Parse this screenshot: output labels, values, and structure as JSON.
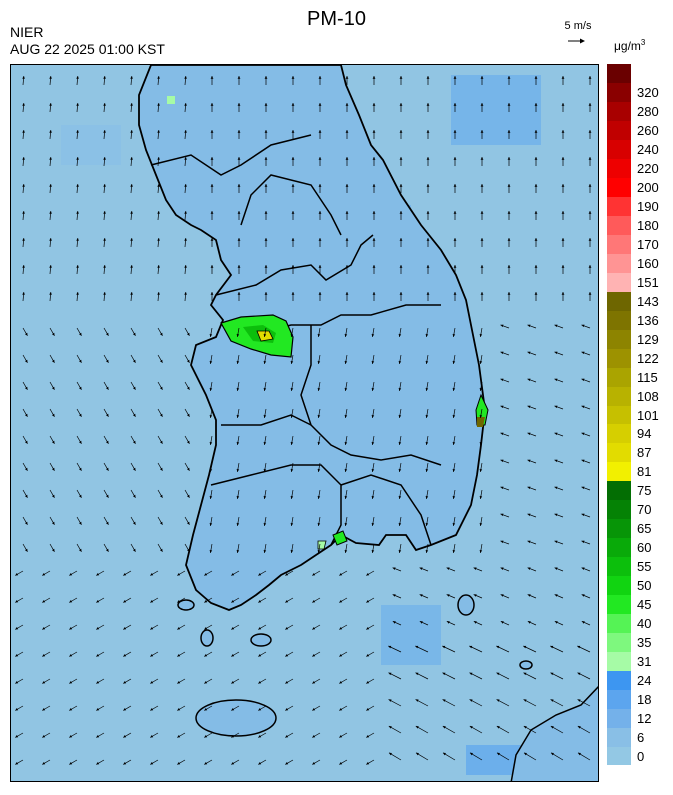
{
  "header": {
    "title": "PM-10",
    "agency": "NIER",
    "timestamp": "AUG 22 2025 01:00 KST",
    "wind_scale_label": "5 m/s",
    "unit_label": "μg/m",
    "unit_superscript": "3"
  },
  "legend": {
    "bins": [
      {
        "label": "0",
        "color": "#93c8e4"
      },
      {
        "label": "6",
        "color": "#89bfe6"
      },
      {
        "label": "12",
        "color": "#74b1ea"
      },
      {
        "label": "18",
        "color": "#5ca5ee"
      },
      {
        "label": "24",
        "color": "#3d96f1"
      },
      {
        "label": "31",
        "color": "#a6fba6"
      },
      {
        "label": "35",
        "color": "#7ef87e"
      },
      {
        "label": "40",
        "color": "#55f355"
      },
      {
        "label": "45",
        "color": "#22e822"
      },
      {
        "label": "50",
        "color": "#11d411"
      },
      {
        "label": "55",
        "color": "#0cbf0c"
      },
      {
        "label": "60",
        "color": "#09aa09"
      },
      {
        "label": "65",
        "color": "#079507"
      },
      {
        "label": "70",
        "color": "#058205"
      },
      {
        "label": "75",
        "color": "#036e03"
      },
      {
        "label": "81",
        "color": "#f2f000"
      },
      {
        "label": "87",
        "color": "#e2dc00"
      },
      {
        "label": "94",
        "color": "#d6cf00"
      },
      {
        "label": "101",
        "color": "#c6c000"
      },
      {
        "label": "108",
        "color": "#b8b200"
      },
      {
        "label": "115",
        "color": "#aaa400"
      },
      {
        "label": "122",
        "color": "#9d9200"
      },
      {
        "label": "129",
        "color": "#8d8400"
      },
      {
        "label": "136",
        "color": "#7e7400"
      },
      {
        "label": "143",
        "color": "#6e6600"
      },
      {
        "label": "151",
        "color": "#ffb3b3"
      },
      {
        "label": "160",
        "color": "#ff9494"
      },
      {
        "label": "170",
        "color": "#ff7777"
      },
      {
        "label": "180",
        "color": "#ff5a5a"
      },
      {
        "label": "190",
        "color": "#ff3333"
      },
      {
        "label": "200",
        "color": "#ff0000"
      },
      {
        "label": "220",
        "color": "#ee0000"
      },
      {
        "label": "240",
        "color": "#d80000"
      },
      {
        "label": "260",
        "color": "#c00000"
      },
      {
        "label": "280",
        "color": "#a80000"
      },
      {
        "label": "320",
        "color": "#8a0000"
      },
      {
        "label": "",
        "color": "#6a0000"
      }
    ]
  },
  "map": {
    "background_color": "#91c5e3",
    "land_color": "#84bce6",
    "coastline_color": "#000000"
  }
}
